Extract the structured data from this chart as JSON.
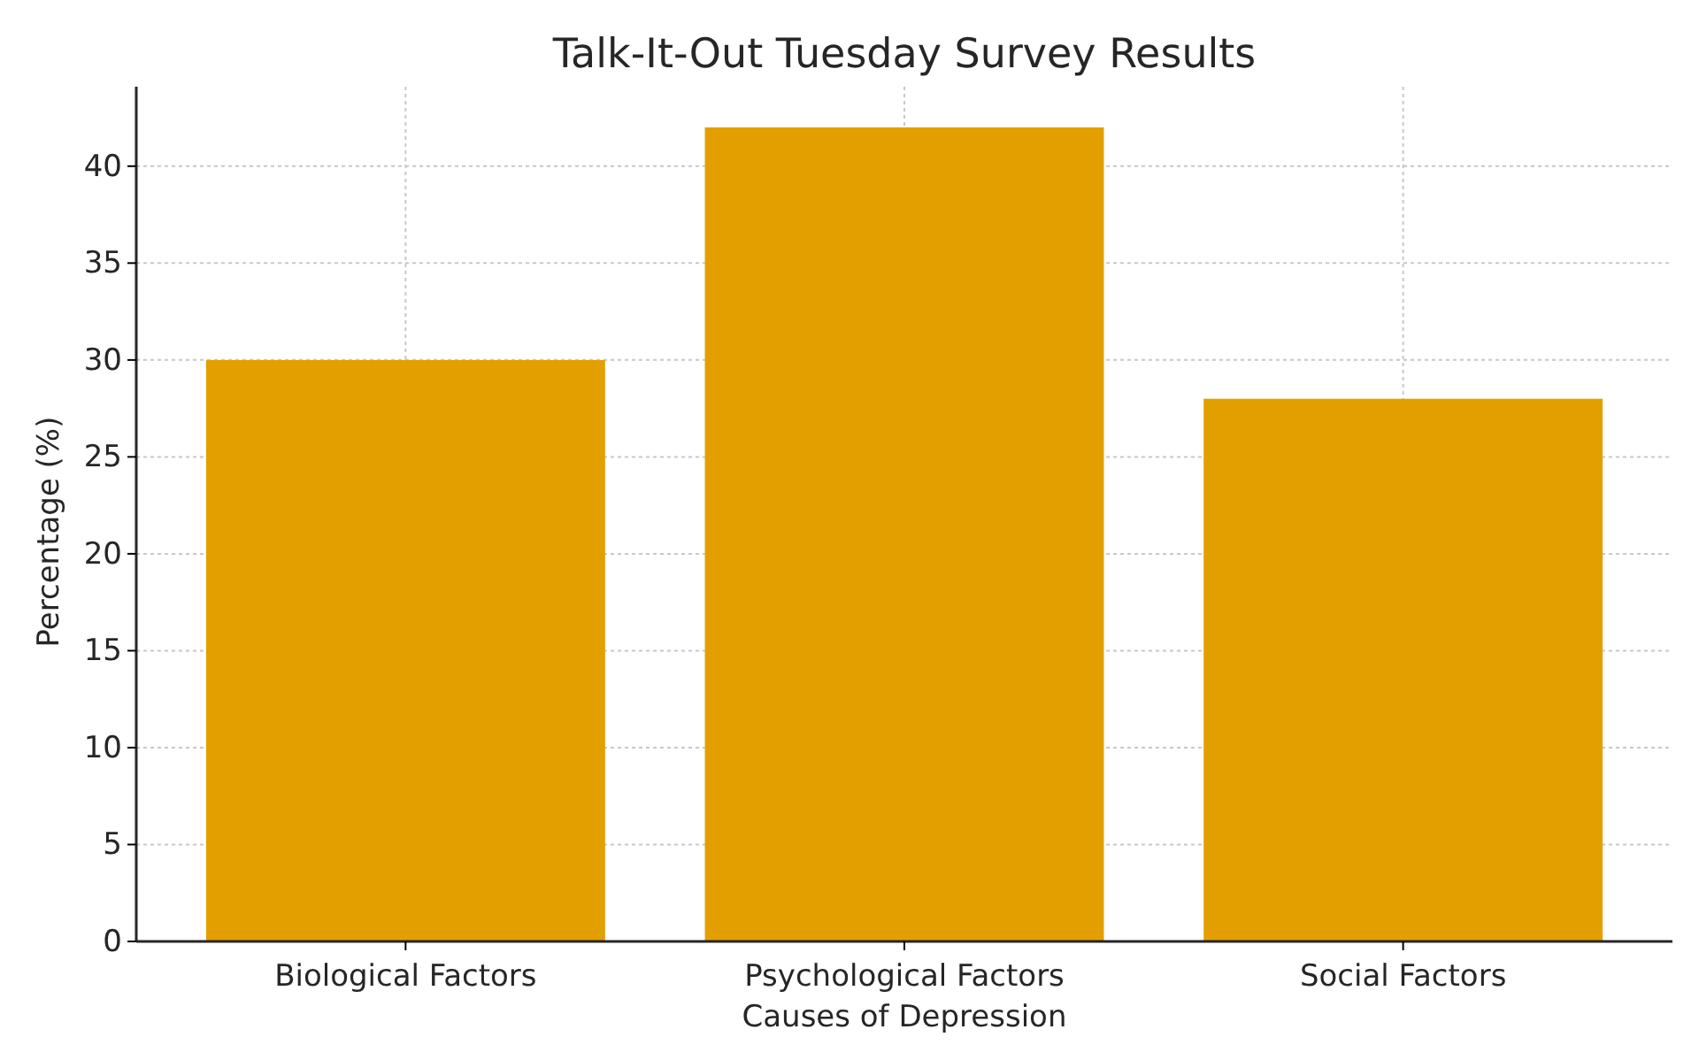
{
  "chart_data": {
    "type": "bar",
    "title": "Talk-It-Out Tuesday Survey Results",
    "xlabel": "Causes of Depression",
    "ylabel": "Percentage (%)",
    "categories": [
      "Biological Factors",
      "Psychological Factors",
      "Social Factors"
    ],
    "values": [
      30,
      42,
      28
    ],
    "color": "#e39f00",
    "ylim": [
      0,
      44.1
    ],
    "yticks": [
      0,
      5,
      10,
      15,
      20,
      25,
      30,
      35,
      40
    ],
    "grid": true
  }
}
